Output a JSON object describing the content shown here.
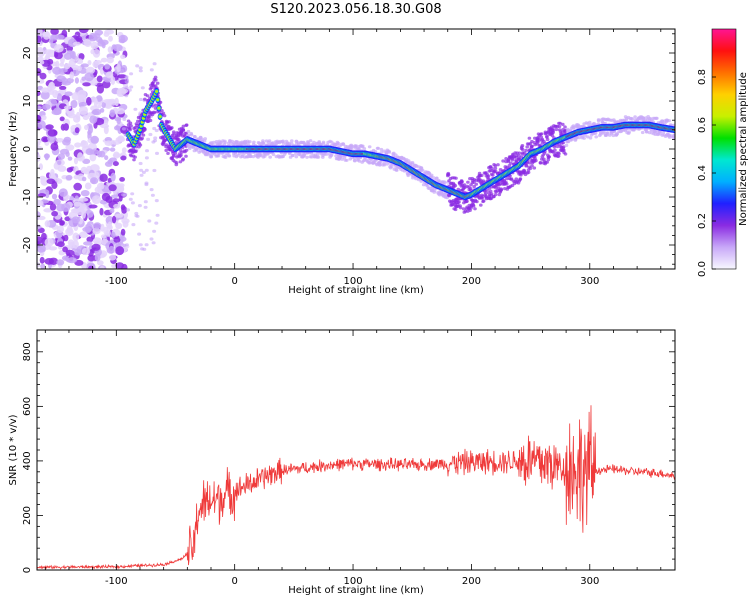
{
  "title": "S120.2023.056.18.30.G08",
  "colors": {
    "snr_line": "#ef3a3a",
    "axis": "#000000",
    "colormap": [
      "#f8f8ff",
      "#c8a8f8",
      "#8a2be2",
      "#2020ff",
      "#00b0ff",
      "#00e8d0",
      "#00e000",
      "#c8f000",
      "#ffd000",
      "#ff7000",
      "#ff1010",
      "#ff1493"
    ]
  },
  "chart_data": [
    {
      "type": "heatmap",
      "title": "S120.2023.056.18.30.G08",
      "xlabel": "Height of straight line (km)",
      "ylabel": "Frequency (Hz)",
      "xlim": [
        -167,
        372
      ],
      "ylim": [
        -25,
        25
      ],
      "xticks": [
        "-100",
        "0",
        "100",
        "200",
        "300"
      ],
      "yticks": [
        "-20",
        "-10",
        "0",
        "10",
        "20"
      ],
      "ridge": {
        "x": [
          -90,
          -85,
          -80,
          -75,
          -70,
          -66,
          -62,
          -55,
          -50,
          -45,
          -40,
          -30,
          -20,
          0,
          20,
          40,
          60,
          80,
          100,
          110,
          120,
          130,
          140,
          150,
          160,
          170,
          180,
          190,
          195,
          200,
          210,
          220,
          230,
          240,
          250,
          260,
          270,
          280,
          290,
          300,
          310,
          320,
          330,
          340,
          350,
          360,
          372
        ],
        "freq": [
          3,
          1,
          4,
          8,
          10,
          12,
          5,
          2,
          0,
          1,
          2,
          1,
          0,
          0,
          0,
          0,
          0,
          0,
          -1,
          -1,
          -1.5,
          -2,
          -3,
          -4.5,
          -6,
          -7.5,
          -8.5,
          -9.5,
          -10,
          -9.5,
          -8,
          -6.5,
          -5,
          -3.5,
          -1,
          0,
          1.5,
          2.5,
          3.5,
          4,
          4.5,
          4.5,
          5,
          5,
          5,
          4.5,
          4
        ]
      },
      "colorbar": {
        "label": "Normalized spectral amplitude",
        "range": [
          0,
          1
        ],
        "ticks": [
          "0.0",
          "0.2",
          "0.4",
          "0.6",
          "0.8"
        ]
      }
    },
    {
      "type": "line",
      "xlabel": "Height of straight line (km)",
      "ylabel": "SNR (10 * v/v)",
      "xlim": [
        -167,
        372
      ],
      "ylim": [
        0,
        880
      ],
      "xticks": [
        "-100",
        "0",
        "100",
        "200",
        "300"
      ],
      "yticks": [
        "0",
        "200",
        "400",
        "600",
        "800"
      ],
      "envelope": {
        "x": [
          -167,
          -100,
          -60,
          -45,
          -35,
          -30,
          -20,
          0,
          10,
          20,
          30,
          40,
          60,
          80,
          100,
          150,
          200,
          230,
          250,
          270,
          280,
          290,
          295,
          300,
          305,
          320,
          340,
          360,
          372
        ],
        "y": [
          10,
          12,
          20,
          40,
          80,
          230,
          250,
          290,
          310,
          330,
          350,
          365,
          375,
          385,
          390,
          385,
          395,
          400,
          400,
          385,
          375,
          370,
          360,
          370,
          365,
          370,
          360,
          355,
          345
        ]
      }
    }
  ]
}
